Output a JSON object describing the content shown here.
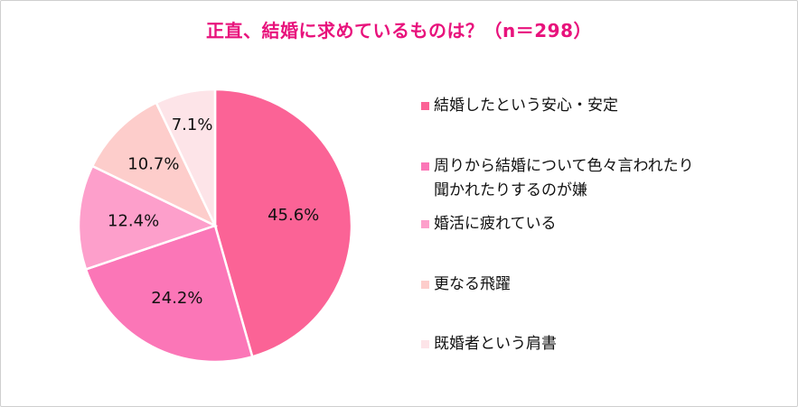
{
  "title": "正直、結婚に求めているものは？（n＝298）",
  "chart_data": {
    "type": "pie",
    "title": "正直、結婚に求めているものは？（n＝298）",
    "legend_position": "right",
    "slices": [
      {
        "label": "結婚したという安心・安定",
        "value": 45.6,
        "display": "45.6%",
        "color": "#fb6396"
      },
      {
        "label": "周りから結婚について色々言われたり聞かれたりするのが嫌",
        "label_lines": [
          "周りから結婚について色々言われたり",
          "聞かれたりするのが嫌"
        ],
        "value": 24.2,
        "display": "24.2%",
        "color": "#fb76b7"
      },
      {
        "label": "婚活に疲れている",
        "value": 12.4,
        "display": "12.4%",
        "color": "#fd9fcb"
      },
      {
        "label": "更なる飛躍",
        "value": 10.7,
        "display": "10.7%",
        "color": "#fdcdcb"
      },
      {
        "label": "既婚者という肩書",
        "value": 7.1,
        "display": "7.1%",
        "color": "#fde4e8"
      }
    ]
  }
}
